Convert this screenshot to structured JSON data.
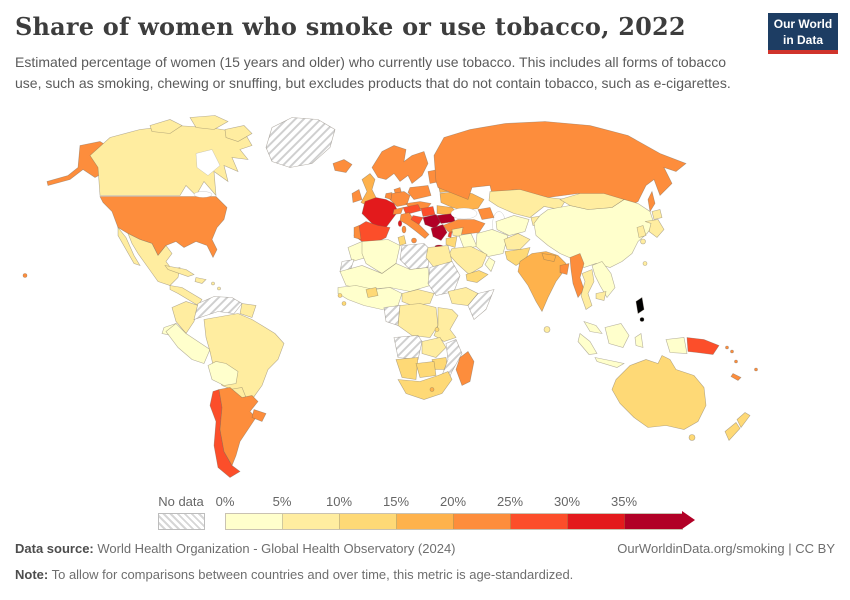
{
  "header": {
    "title": "Share of women who smoke or use tobacco, 2022",
    "subtitle": "Estimated percentage of women (15 years and older) who currently use tobacco. This includes all forms of tobacco use, such as smoking, chewing or snuffing, but excludes products that do not contain tobacco, such as e-cigarettes.",
    "logo": {
      "line1": "Our World",
      "line2": "in Data",
      "bg_color": "#1d3d63",
      "accent_color": "#d0342c"
    }
  },
  "chart_data": {
    "type": "choropleth",
    "title": "Share of women who smoke or use tobacco, 2022",
    "year": "2022",
    "metric": "Share of women (15 years and older) who currently use tobacco",
    "unit": "%",
    "legend": {
      "no_data_label": "No data",
      "tick_labels": [
        "0%",
        "5%",
        "10%",
        "15%",
        "20%",
        "25%",
        "30%",
        "35%"
      ],
      "bins": [
        "0-5%",
        "5-10%",
        "10-15%",
        "15-20%",
        "20-25%",
        "25-30%",
        "30-35%",
        "35%+"
      ],
      "bin_colors": [
        "#FFFFCC",
        "#FFEDA0",
        "#FED976",
        "#FEB24C",
        "#FD8D3C",
        "#FC4E2A",
        "#E31A1C",
        "#B10026"
      ],
      "no_data_pattern": "diagonal-hatch",
      "arrow_end": true
    },
    "regions": {
      "greenland": {
        "label": "Greenland",
        "bin": "no-data"
      },
      "canada": {
        "label": "Canada",
        "bin": 1
      },
      "arctic-islands": {
        "label": "Canadian Arctic islands",
        "bin": 1
      },
      "alaska": {
        "label": "Alaska (United States)",
        "bin": 4
      },
      "united-states": {
        "label": "United States",
        "bin": 4
      },
      "mexico": {
        "label": "Mexico",
        "bin": 1
      },
      "central-america": {
        "label": "Central America",
        "bin": 1
      },
      "cuba": {
        "label": "Cuba",
        "bin": 1
      },
      "hispaniola": {
        "label": "Hispaniola",
        "bin": 1
      },
      "caribbean": {
        "label": "Caribbean islands",
        "bin": 1
      },
      "colombia": {
        "label": "Colombia",
        "bin": 1
      },
      "venezuela": {
        "label": "Venezuela",
        "bin": "no-data"
      },
      "guianas": {
        "label": "Guyana and Suriname",
        "bin": 1
      },
      "ecuador": {
        "label": "Ecuador",
        "bin": 0
      },
      "peru": {
        "label": "Peru",
        "bin": 0
      },
      "brazil": {
        "label": "Brazil",
        "bin": 1
      },
      "bolivia": {
        "label": "Bolivia",
        "bin": 0
      },
      "paraguay": {
        "label": "Paraguay",
        "bin": 1
      },
      "uruguay": {
        "label": "Uruguay",
        "bin": 4
      },
      "argentina": {
        "label": "Argentina",
        "bin": 4
      },
      "chile": {
        "label": "Chile",
        "bin": 5
      },
      "iceland": {
        "label": "Iceland",
        "bin": 4
      },
      "ireland": {
        "label": "Ireland",
        "bin": 4
      },
      "united-kingdom": {
        "label": "United Kingdom",
        "bin": 3
      },
      "scandinavia": {
        "label": "Norway, Sweden and Finland",
        "bin": 4
      },
      "denmark": {
        "label": "Denmark",
        "bin": 4
      },
      "baltics": {
        "label": "Baltic states",
        "bin": 4
      },
      "belarus": {
        "label": "Belarus",
        "bin": 3
      },
      "ukraine": {
        "label": "Ukraine",
        "bin": 3
      },
      "romania": {
        "label": "Romania and Moldova",
        "bin": 3
      },
      "poland": {
        "label": "Poland",
        "bin": 4
      },
      "germany": {
        "label": "Germany",
        "bin": 4
      },
      "benelux": {
        "label": "Benelux",
        "bin": 4
      },
      "france": {
        "label": "France",
        "bin": 6
      },
      "switzerland": {
        "label": "Switzerland",
        "bin": 4
      },
      "czechia-slovakia": {
        "label": "Czechia and Slovakia",
        "bin": 4
      },
      "austria": {
        "label": "Austria",
        "bin": 5
      },
      "hungary": {
        "label": "Hungary",
        "bin": 5
      },
      "italy": {
        "label": "Italy",
        "bin": 4
      },
      "spain": {
        "label": "Spain",
        "bin": 5
      },
      "portugal": {
        "label": "Portugal",
        "bin": 4
      },
      "croatia": {
        "label": "Croatia",
        "bin": 5
      },
      "serbia-bosnia": {
        "label": "Serbia, Bosnia and Montenegro",
        "bin": 7
      },
      "bulgaria": {
        "label": "Bulgaria and North Macedonia",
        "bin": 7
      },
      "greece": {
        "label": "Greece",
        "bin": 7
      },
      "russia": {
        "label": "Russia",
        "bin": 4
      },
      "turkey": {
        "label": "Turkey",
        "bin": 4
      },
      "caucasus": {
        "label": "Georgia, Armenia and Azerbaijan",
        "bin": 4
      },
      "syria": {
        "label": "Syria",
        "bin": 1
      },
      "lebanon": {
        "label": "Lebanon",
        "bin": 5
      },
      "israel-jordan": {
        "label": "Israel and Jordan",
        "bin": 2
      },
      "iraq": {
        "label": "Iraq",
        "bin": 0
      },
      "iran": {
        "label": "Iran",
        "bin": 0
      },
      "saudi-arabia": {
        "label": "Saudi Arabia",
        "bin": 1
      },
      "yemen": {
        "label": "Yemen",
        "bin": 2
      },
      "oman": {
        "label": "Oman",
        "bin": 0
      },
      "kazakhstan": {
        "label": "Kazakhstan",
        "bin": 1
      },
      "uzbekistan-turkmenistan": {
        "label": "Uzbekistan and Turkmenistan",
        "bin": 0
      },
      "kyrgyzstan-tajikistan": {
        "label": "Kyrgyzstan and Tajikistan",
        "bin": 1
      },
      "afghanistan": {
        "label": "Afghanistan",
        "bin": 1
      },
      "pakistan": {
        "label": "Pakistan",
        "bin": 2
      },
      "india": {
        "label": "India",
        "bin": 3
      },
      "nepal": {
        "label": "Nepal",
        "bin": 3
      },
      "bangladesh": {
        "label": "Bangladesh",
        "bin": 4
      },
      "sri-lanka": {
        "label": "Sri Lanka",
        "bin": 1
      },
      "myanmar": {
        "label": "Myanmar",
        "bin": 4
      },
      "china": {
        "label": "China",
        "bin": 0
      },
      "mongolia": {
        "label": "Mongolia",
        "bin": 1
      },
      "korea": {
        "label": "South Korea",
        "bin": 1
      },
      "japan": {
        "label": "Japan",
        "bin": 1
      },
      "taiwan": {
        "label": "Taiwan",
        "bin": 1
      },
      "thailand": {
        "label": "Thailand",
        "bin": 1
      },
      "laos-vietnam": {
        "label": "Laos and Vietnam",
        "bin": 0
      },
      "cambodia": {
        "label": "Cambodia",
        "bin": 1
      },
      "malaysia": {
        "label": "Malaysia",
        "bin": 0
      },
      "indonesia": {
        "label": "Indonesia",
        "bin": 0
      },
      "west-papua": {
        "label": "Papua (Indonesia)",
        "bin": 0
      },
      "papua-new-guinea": {
        "label": "Papua New Guinea",
        "bin": 5
      },
      "pacific-islands": {
        "label": "Pacific islands",
        "bin": 4
      },
      "new-caledonia": {
        "label": "New Caledonia",
        "bin": 4
      },
      "australia": {
        "label": "Australia",
        "bin": 2
      },
      "new-zealand": {
        "label": "New Zealand",
        "bin": 2
      },
      "morocco": {
        "label": "Morocco",
        "bin": 0
      },
      "western-sahara": {
        "label": "Western Sahara",
        "bin": "no-data"
      },
      "algeria": {
        "label": "Algeria",
        "bin": 0
      },
      "tunisia": {
        "label": "Tunisia",
        "bin": 2
      },
      "libya": {
        "label": "Libya",
        "bin": "no-data"
      },
      "egypt": {
        "label": "Egypt",
        "bin": 1
      },
      "sahel": {
        "label": "Mauritania, Mali, Niger and Chad",
        "bin": 0
      },
      "sudan": {
        "label": "Sudan and South Sudan",
        "bin": "no-data"
      },
      "west-africa": {
        "label": "West Africa",
        "bin": 0
      },
      "burkina-faso": {
        "label": "Burkina Faso",
        "bin": 2
      },
      "guinea-coast": {
        "label": "Guinea-Bissau and Sierra Leone",
        "bin": 2
      },
      "cameroon-car": {
        "label": "Cameroon and Central African Republic",
        "bin": 1
      },
      "ethiopia": {
        "label": "Ethiopia",
        "bin": 1
      },
      "somalia": {
        "label": "Somalia",
        "bin": "no-data"
      },
      "congo": {
        "label": "Congo",
        "bin": "no-data"
      },
      "dr-congo": {
        "label": "Democratic Republic of Congo",
        "bin": 1
      },
      "kenya-tanzania": {
        "label": "Kenya and Tanzania",
        "bin": 1
      },
      "rwanda-burundi": {
        "label": "Rwanda and Burundi",
        "bin": 2
      },
      "angola": {
        "label": "Angola",
        "bin": "no-data"
      },
      "zambia": {
        "label": "Zambia",
        "bin": 1
      },
      "zimbabwe": {
        "label": "Zimbabwe",
        "bin": 2
      },
      "mozambique": {
        "label": "Mozambique and Malawi",
        "bin": "no-data"
      },
      "namibia": {
        "label": "Namibia",
        "bin": 2
      },
      "botswana": {
        "label": "Botswana",
        "bin": 2
      },
      "south-africa": {
        "label": "South Africa",
        "bin": 2
      },
      "lesotho": {
        "label": "Lesotho",
        "bin": 3
      },
      "madagascar": {
        "label": "Madagascar",
        "bin": 4
      }
    }
  },
  "footer": {
    "source_label": "Data source:",
    "source_text": " World Health Organization - Global Health Observatory (2024)",
    "link_text": "OurWorldinData.org/smoking",
    "separator": " | ",
    "license_text": "CC BY",
    "note_label": "Note:",
    "note_text": " To allow for comparisons between countries and over time, this metric is age-standardized."
  }
}
